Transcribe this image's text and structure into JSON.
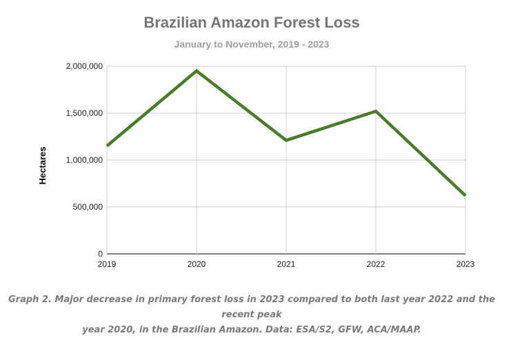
{
  "chart_data": {
    "type": "line",
    "title": "Brazilian Amazon Forest Loss",
    "subtitle": "January to November, 2019 - 2023",
    "xlabel": "",
    "ylabel": "Hectares",
    "categories": [
      "2019",
      "2020",
      "2021",
      "2022",
      "2023"
    ],
    "series": [
      {
        "values": [
          1150000,
          1950000,
          1210000,
          1520000,
          620000
        ],
        "color": "#4a7a2c"
      }
    ],
    "ylim": [
      0,
      2000000
    ],
    "yticks": [
      0,
      500000,
      1000000,
      1500000,
      2000000
    ],
    "ytick_labels": [
      "0",
      "500,000",
      "1,000,000",
      "1,500,000",
      "2,000,000"
    ],
    "grid": true,
    "legend": "none"
  },
  "caption": {
    "line1": "Graph 2. Major decrease in primary forest loss in 2023 compared to both last year 2022 and the recent peak",
    "line2": "year 2020, in the Brazilian Amazon. Data: ESA/S2, GFW, ACA/MAAP."
  }
}
